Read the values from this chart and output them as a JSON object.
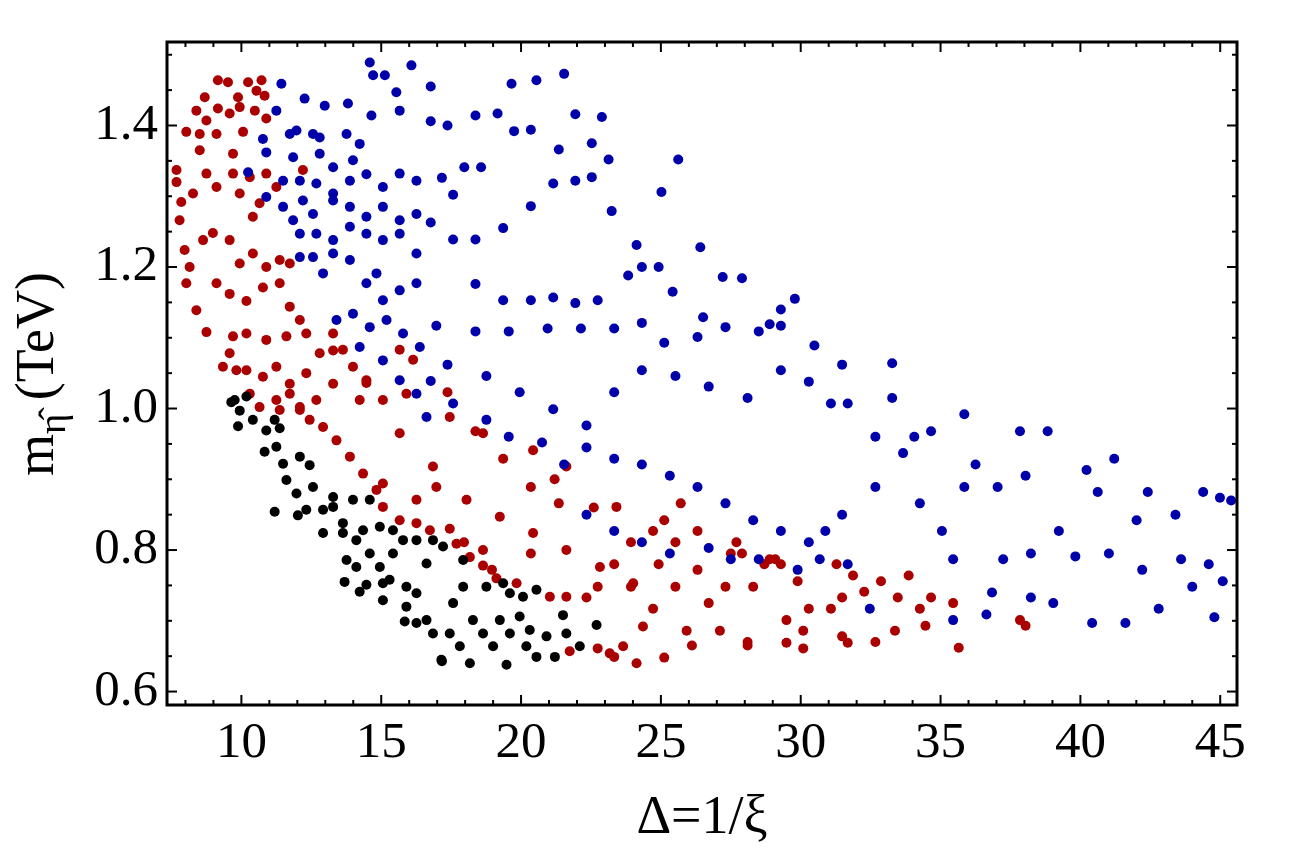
{
  "chart_data": {
    "type": "scatter",
    "xlabel": "Δ=1/ξ",
    "ylabel": "m$_{η̂}$ (TeV)",
    "xlim": [
      7.34,
      45.6
    ],
    "ylim": [
      0.581,
      1.518
    ],
    "xticks": [
      {
        "value": 8,
        "label": null
      },
      {
        "value": 9,
        "label": null
      },
      10,
      {
        "value": 11,
        "label": null
      },
      {
        "value": 12,
        "label": null
      },
      {
        "value": 13,
        "label": null
      },
      {
        "value": 14,
        "label": null
      },
      15,
      {
        "value": 16,
        "label": null
      },
      {
        "value": 17,
        "label": null
      },
      {
        "value": 18,
        "label": null
      },
      {
        "value": 19,
        "label": null
      },
      20,
      {
        "value": 21,
        "label": null
      },
      {
        "value": 22,
        "label": null
      },
      {
        "value": 23,
        "label": null
      },
      {
        "value": 24,
        "label": null
      },
      25,
      {
        "value": 26,
        "label": null
      },
      {
        "value": 27,
        "label": null
      },
      {
        "value": 28,
        "label": null
      },
      {
        "value": 29,
        "label": null
      },
      30,
      {
        "value": 31,
        "label": null
      },
      {
        "value": 32,
        "label": null
      },
      {
        "value": 33,
        "label": null
      },
      {
        "value": 34,
        "label": null
      },
      35,
      {
        "value": 36,
        "label": null
      },
      {
        "value": 37,
        "label": null
      },
      {
        "value": 38,
        "label": null
      },
      {
        "value": 39,
        "label": null
      },
      40,
      {
        "value": 41,
        "label": null
      },
      {
        "value": 42,
        "label": null
      },
      {
        "value": 43,
        "label": null
      },
      {
        "value": 44,
        "label": null
      },
      45
    ],
    "yticks": [
      0.6,
      {
        "value": 0.65,
        "label": null
      },
      {
        "value": 0.7,
        "label": null
      },
      {
        "value": 0.75,
        "label": null
      },
      0.8,
      {
        "value": 0.85,
        "label": null
      },
      {
        "value": 0.9,
        "label": null
      },
      {
        "value": 0.95,
        "label": null
      },
      {
        "value": 1,
        "label": "1.0"
      },
      {
        "value": 1.05,
        "label": null
      },
      {
        "value": 1.1,
        "label": null
      },
      {
        "value": 1.15,
        "label": null
      },
      1.2,
      {
        "value": 1.25,
        "label": null
      },
      {
        "value": 1.3,
        "label": null
      },
      {
        "value": 1.35,
        "label": null
      },
      1.4,
      {
        "value": 1.45,
        "label": null
      },
      {
        "value": 1.5,
        "label": null
      }
    ],
    "marker": "circle",
    "series": [
      {
        "color": "#aa0000",
        "x": [
          9.16,
          9.52,
          10.24,
          10.72,
          9.88,
          10.54,
          10.83,
          8.69,
          8.39,
          8.75,
          8.03,
          8.51,
          9.16,
          9.58,
          9.94,
          10.48,
          10.89,
          7.68,
          7.68,
          7.85,
          7.79,
          8.27,
          8.51,
          9.11,
          9.7,
          10.06,
          8.75,
          9.11,
          9.7,
          9.94,
          10.3,
          10.89,
          11.25,
          10.65,
          10.41,
          7.97,
          8.15,
          8.03,
          8.39,
          8.75,
          8.63,
          8.98,
          9.58,
          9.94,
          10.41,
          10.89,
          11.37,
          11.73,
          12.2,
          9.11,
          9.58,
          10.18,
          10.77,
          11.37,
          11.73,
          12.09,
          12.32,
          11.61,
          10.89,
          10.18,
          9.7,
          9.58,
          10.18,
          10.77,
          11.25,
          11.73,
          12.32,
          12.8,
          13.28,
          13.63,
          13.99,
          14.47,
          15.66,
          16.14,
          15.9,
          15.06,
          14.23,
          13.28,
          12.68,
          12.09,
          11.37,
          9.34,
          9.82,
          10.3,
          10.65,
          11.25,
          11.73,
          12.09,
          12.44,
          12.92,
          13.4,
          13.88,
          14.35,
          14.83,
          15.06,
          15.66,
          16.26,
          16.74,
          17.69,
          18.17,
          18.64,
          19.12,
          19.84,
          21.03,
          21.62,
          23.17,
          23.65,
          24.13,
          24.36,
          13.28,
          14.47,
          15.66,
          16.85,
          18.05,
          19.24,
          20.43,
          21.62,
          22.82,
          24.01,
          23.41,
          21.62,
          20.43,
          18.64,
          17.45,
          15.06,
          16.26,
          17.45,
          18.64,
          28.3,
          29.09,
          29.89,
          30.29,
          31.08,
          31.48,
          32.27,
          32.87,
          33.47,
          33.86,
          34.26,
          34.66,
          35.45,
          29.49,
          30.09,
          31.48,
          32.67,
          33.37,
          34.46,
          35.65,
          37.84,
          38.04,
          26.31,
          27.31,
          26.71,
          27.9,
          28.7,
          25.52,
          24.72,
          25.92,
          27.11,
          28.1,
          23.93,
          24.72,
          23.33,
          22.74,
          22.34,
          23.93,
          24.92,
          25.52,
          26.31,
          27.5,
          25.71,
          25.12,
          27.7,
          28.89,
          29.29,
          31.28,
          31.87,
          21.74,
          22.74,
          23.33,
          25.12,
          26.11,
          28.1,
          29.49,
          30.09,
          31.68,
          17.37,
          18.37,
          19.36,
          20.35,
          21.35,
          16.97,
          17.96,
          18.96,
          20.35,
          21.2,
          22.6
        ],
        "values": [
          1.464,
          1.461,
          1.461,
          1.464,
          1.44,
          1.449,
          1.442,
          1.44,
          1.421,
          1.407,
          1.391,
          1.388,
          1.424,
          1.417,
          1.426,
          1.421,
          1.41,
          1.337,
          1.32,
          1.292,
          1.266,
          1.304,
          1.365,
          1.388,
          1.36,
          1.391,
          1.332,
          1.313,
          1.332,
          1.304,
          1.327,
          1.332,
          1.313,
          1.29,
          1.271,
          1.224,
          1.2,
          1.177,
          1.139,
          1.108,
          1.238,
          1.248,
          1.238,
          1.205,
          1.219,
          1.2,
          1.21,
          1.205,
          1.337,
          1.177,
          1.162,
          1.152,
          1.171,
          1.177,
          1.144,
          1.125,
          1.106,
          1.102,
          1.097,
          1.106,
          1.102,
          1.078,
          1.054,
          1.045,
          1.059,
          1.035,
          1.05,
          1.078,
          1.106,
          1.083,
          1.059,
          1.04,
          1.083,
          1.069,
          1.021,
          1.012,
          1.012,
          1.035,
          1.012,
          0.998,
          0.998,
          1.059,
          1.054,
          1.021,
          1.002,
          1.012,
          1.021,
          1.002,
          0.984,
          0.974,
          0.955,
          0.932,
          0.908,
          0.885,
          0.861,
          0.842,
          0.838,
          0.828,
          0.809,
          0.79,
          0.778,
          0.76,
          0.753,
          0.734,
          0.734,
          0.654,
          0.664,
          0.64,
          0.692,
          1.082,
          1.036,
          0.965,
          0.918,
          0.871,
          0.847,
          0.824,
          0.8,
          0.776,
          0.753,
          0.861,
          0.918,
          0.941,
          0.965,
          0.988,
          0.894,
          0.871,
          0.83,
          0.8,
          0.748,
          0.787,
          0.756,
          0.717,
          0.717,
          0.733,
          0.741,
          0.756,
          0.733,
          0.764,
          0.717,
          0.733,
          0.725,
          0.701,
          0.686,
          0.678,
          0.67,
          0.686,
          0.693,
          0.662,
          0.701,
          0.693,
          0.772,
          0.748,
          0.725,
          0.795,
          0.78,
          0.748,
          0.717,
          0.686,
          0.686,
          0.67,
          0.811,
          0.827,
          0.78,
          0.748,
          0.733,
          0.748,
          0.78,
          0.811,
          0.827,
          0.795,
          0.866,
          0.842,
          0.811,
          0.787,
          0.78,
          0.78,
          0.764,
          0.657,
          0.661,
          0.649,
          0.648,
          0.665,
          0.665,
          0.669,
          0.661,
          0.669,
          1.023,
          0.968,
          0.929,
          0.889,
          0.866,
          0.889,
          0.811,
          0.772,
          0.795,
          0.9,
          0.86
        ]
      },
      {
        "color": "#0000aa",
        "x": [
          16.77,
          19.66,
          20.55,
          21.54,
          21.94,
          22.89,
          19.16,
          18.37,
          17.37,
          16.77,
          25.62,
          25.02,
          26.41,
          27.21,
          27.9,
          29.79,
          29.29,
          28.89,
          27.31,
          26.51,
          25.42,
          24.13,
          24.32,
          24.92,
          23.83,
          23.24,
          22.74,
          21.94,
          21.15,
          20.35,
          19.36,
          18.37,
          17.97,
          18.57,
          19.75,
          20.35,
          21.35,
          22.53,
          23.13,
          22.53,
          21.94,
          21.15,
          20.35,
          19.36,
          18.37,
          17.57,
          16.77,
          17.17,
          17.57,
          11.43,
          12.26,
          12.98,
          13.81,
          14.59,
          14.71,
          15.13,
          15.54,
          16.08,
          14.65,
          15.66,
          10.77,
          10.89,
          11.25,
          11.73,
          11.97,
          12.56,
          12.8,
          13.76,
          14.23,
          13.99,
          13.28,
          12.8,
          11.85,
          11.49,
          12.09,
          12.68,
          13.28,
          13.88,
          14.47,
          15.06,
          15.66,
          16.26,
          10.24,
          10.89,
          11.49,
          11.85,
          12.2,
          12.56,
          13.28,
          13.88,
          14.47,
          15.06,
          15.66,
          16.26,
          12.09,
          12.68,
          13.28,
          13.88,
          14.47,
          15.06,
          15.66,
          16.26,
          12.09,
          12.56,
          12.92,
          13.28,
          13.88,
          14.47,
          14.83,
          15.06,
          15.66,
          16.26,
          13.4,
          13.99,
          14.59,
          15.19,
          15.78,
          16.38,
          14.23,
          15.06,
          15.66,
          16.26,
          16.62,
          16.97,
          18.37,
          19.56,
          20.95,
          22.14,
          23.33,
          24.32,
          25.12,
          26.31,
          28.5,
          29.29,
          30.49,
          31.48,
          33.27,
          17.37,
          18.76,
          19.95,
          21.15,
          22.34,
          23.33,
          24.32,
          25.52,
          26.71,
          28.1,
          29.29,
          30.29,
          31.08,
          31.68,
          32.67,
          33.27,
          34.06,
          34.66,
          16.77,
          17.57,
          18.76,
          19.56,
          20.75,
          21.54,
          22.34,
          23.33,
          24.32,
          25.32,
          26.31,
          27.31,
          28.3,
          29.29,
          30.29,
          30.88,
          31.48,
          32.67,
          33.66,
          34.26,
          35.05,
          35.45,
          35.85,
          36.25,
          37.04,
          37.84,
          38.04,
          38.23,
          38.83,
          39.23,
          40.22,
          40.62,
          41.02,
          41.21,
          42.01,
          42.41,
          42.8,
          43.4,
          43.6,
          44.39,
          44.59,
          44.99,
          45.39,
          44.79,
          41.61,
          40.42,
          39.03,
          36.84,
          36.64,
          38.23,
          35.45,
          35.85,
          37.24,
          39.82,
          42.21,
          44.0,
          45.09,
          22.34,
          23.33,
          24.32,
          25.32,
          26.71,
          27.5,
          28.5,
          29.89,
          30.68,
          31.68,
          32.47
        ],
        "values": [
          1.455,
          1.459,
          1.464,
          1.473,
          1.416,
          1.412,
          1.417,
          1.414,
          1.4,
          1.406,
          1.352,
          1.306,
          1.228,
          1.186,
          1.184,
          1.155,
          1.14,
          1.119,
          1.115,
          1.129,
          1.165,
          1.231,
          1.2,
          1.2,
          1.188,
          1.279,
          1.153,
          1.149,
          1.157,
          1.153,
          1.153,
          1.176,
          1.341,
          1.341,
          1.392,
          1.394,
          1.366,
          1.375,
          1.352,
          1.327,
          1.322,
          1.318,
          1.286,
          1.255,
          1.239,
          1.239,
          1.263,
          1.326,
          1.302,
          1.459,
          1.438,
          1.428,
          1.431,
          1.489,
          1.471,
          1.471,
          1.447,
          1.485,
          1.414,
          1.421,
          1.381,
          1.362,
          1.421,
          1.388,
          1.393,
          1.388,
          1.383,
          1.388,
          1.374,
          1.351,
          1.341,
          1.36,
          1.355,
          1.322,
          1.322,
          1.318,
          1.304,
          1.322,
          1.331,
          1.313,
          1.332,
          1.322,
          1.334,
          1.299,
          1.285,
          1.266,
          1.294,
          1.275,
          1.294,
          1.285,
          1.271,
          1.285,
          1.266,
          1.275,
          1.247,
          1.247,
          1.238,
          1.257,
          1.247,
          1.238,
          1.247,
          1.219,
          1.214,
          1.214,
          1.191,
          1.219,
          1.21,
          1.177,
          1.191,
          1.153,
          1.167,
          1.177,
          1.125,
          1.134,
          1.115,
          1.125,
          1.106,
          1.087,
          1.087,
          1.068,
          1.04,
          1.021,
          0.988,
          1.117,
          1.109,
          1.109,
          1.113,
          1.113,
          1.113,
          1.121,
          1.093,
          1.101,
          1.109,
          1.117,
          1.089,
          1.062,
          1.064,
          1.062,
          1.046,
          1.023,
          0.999,
          0.976,
          1.023,
          1.054,
          1.046,
          1.031,
          1.015,
          1.054,
          1.038,
          1.007,
          1.007,
          0.96,
          1.015,
          0.96,
          0.968,
          1.039,
          1.007,
          0.984,
          0.96,
          0.952,
          0.921,
          0.945,
          0.929,
          0.921,
          0.905,
          0.889,
          0.866,
          0.842,
          0.827,
          0.811,
          0.827,
          0.85,
          0.889,
          0.937,
          0.866,
          0.827,
          0.787,
          0.992,
          0.921,
          0.889,
          0.968,
          0.905,
          0.795,
          0.968,
          0.827,
          0.913,
          0.882,
          0.795,
          0.929,
          0.842,
          0.882,
          0.717,
          0.85,
          0.787,
          0.882,
          0.78,
          0.874,
          0.87,
          0.705,
          0.697,
          0.697,
          0.725,
          0.74,
          0.709,
          0.733,
          0.701,
          0.889,
          0.787,
          0.791,
          0.772,
          0.748,
          0.756,
          0.85,
          0.827,
          0.811,
          0.795,
          0.803,
          0.787,
          0.787,
          0.772,
          0.787,
          0.78,
          0.717
        ]
      },
      {
        "color": "#000000",
        "x": [
          9.64,
          9.76,
          10.18,
          9.94,
          9.88,
          10.41,
          10.89,
          11.19,
          11.37,
          10.83,
          11.25,
          11.49,
          11.19,
          12.09,
          12.44,
          11.61,
          11.97,
          12.56,
          12.02,
          12.32,
          12.92,
          13.28,
          13.63,
          13.99,
          13.63,
          14.11,
          14.35,
          14.59,
          13.76,
          14.11,
          14.59,
          14.95,
          15.06,
          13.69,
          14.23,
          14.47,
          15.06,
          15.42,
          15.78,
          16.26,
          15.3,
          15.9,
          15.9,
          16.26,
          16.62,
          16.85,
          17.21,
          15.84,
          16.26,
          16.62,
          16.85,
          17.15,
          17.45,
          17.57,
          17.81,
          18.17,
          17.93,
          17.93,
          18.28,
          18.64,
          19.0,
          19.24,
          19.6,
          19.48,
          18.76,
          19.36,
          19.6,
          20.07,
          20.19,
          20.55,
          19.95,
          20.31,
          20.55,
          20.91,
          21.21,
          21.5,
          21.62,
          22.1,
          22.7,
          17.17,
          15.42,
          14.95,
          12.92,
          13.28
        ],
        "values": [
          1.009,
          1.012,
          1.017,
          0.997,
          0.975,
          0.984,
          0.969,
          0.984,
          0.972,
          0.939,
          0.946,
          0.922,
          0.854,
          0.932,
          0.92,
          0.899,
          0.88,
          0.889,
          0.849,
          0.857,
          0.824,
          0.861,
          0.838,
          0.871,
          0.824,
          0.814,
          0.828,
          0.871,
          0.786,
          0.776,
          0.795,
          0.776,
          0.753,
          0.755,
          0.741,
          0.751,
          0.729,
          0.795,
          0.814,
          0.814,
          0.758,
          0.748,
          0.72,
          0.739,
          0.781,
          0.814,
          0.805,
          0.699,
          0.697,
          0.701,
          0.682,
          0.645,
          0.682,
          0.725,
          0.664,
          0.64,
          0.786,
          0.748,
          0.701,
          0.682,
          0.664,
          0.701,
          0.682,
          0.638,
          0.748,
          0.753,
          0.739,
          0.734,
          0.664,
          0.744,
          0.706,
          0.687,
          0.649,
          0.678,
          0.649,
          0.708,
          0.682,
          0.664,
          0.694,
          0.643,
          0.828,
          0.833,
          0.857,
          0.875
        ]
      }
    ]
  }
}
